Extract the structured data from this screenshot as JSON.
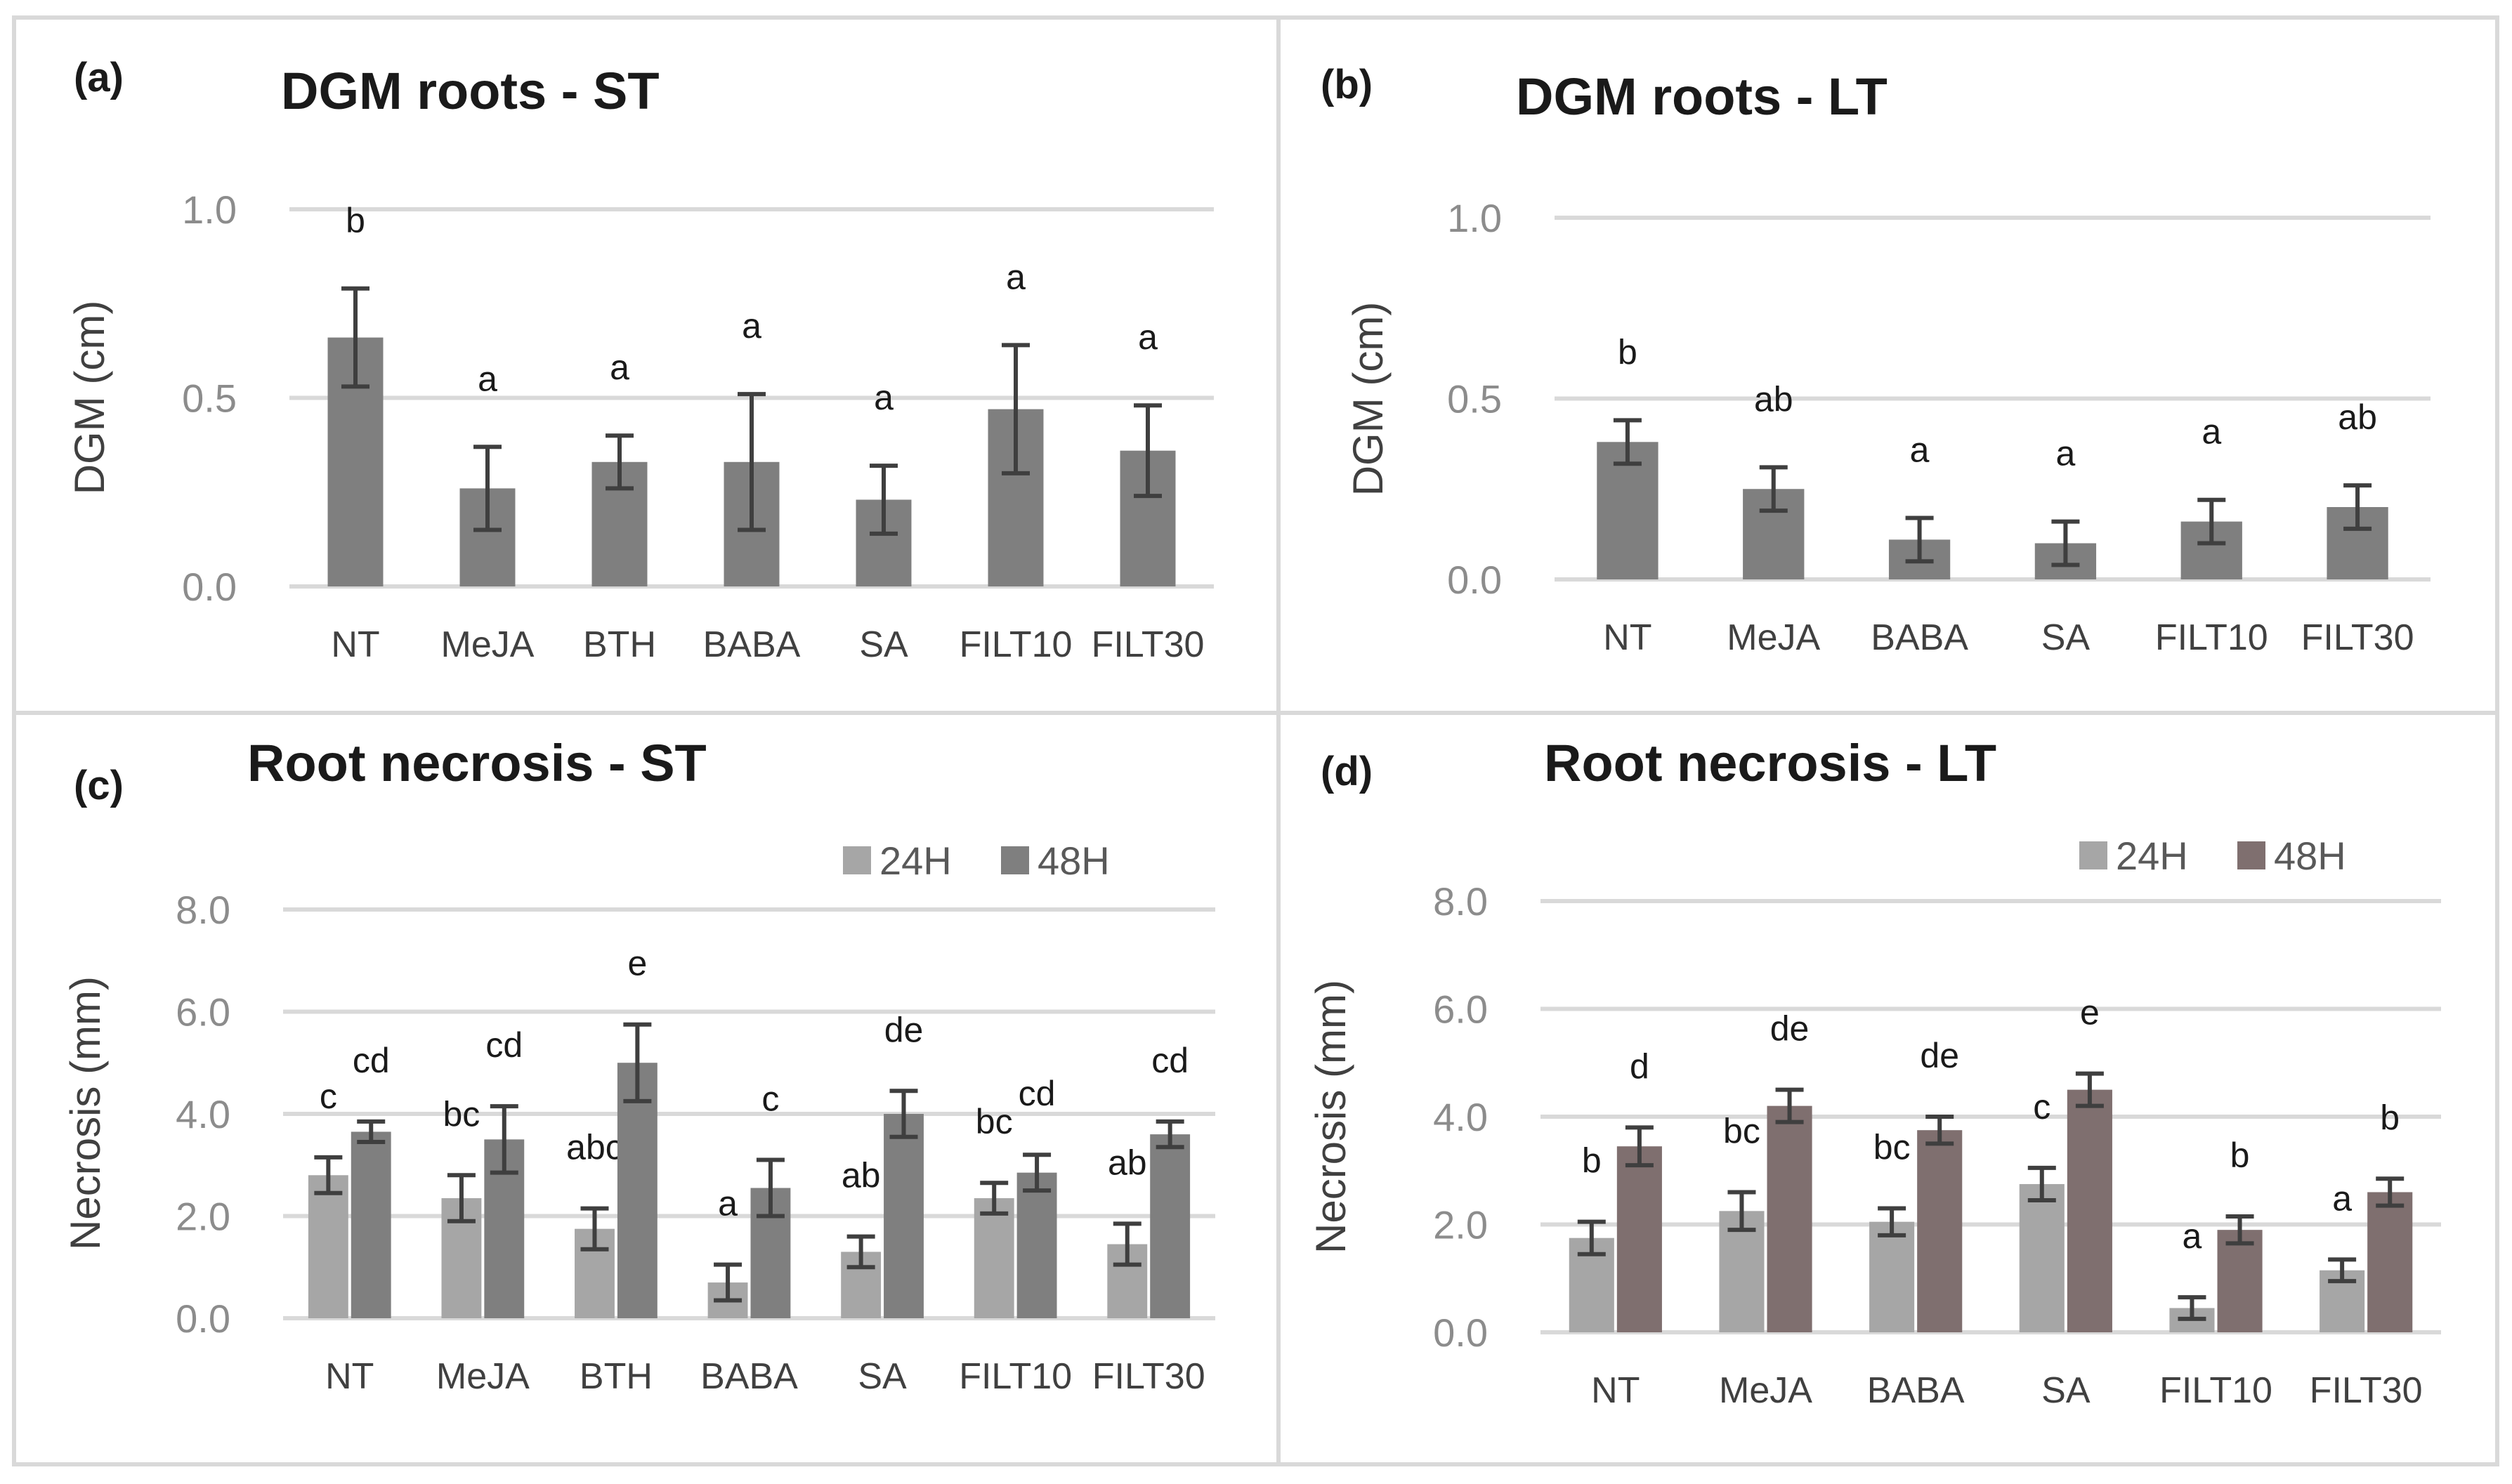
{
  "chart_data": [
    {
      "type": "bar",
      "panel": "(a)",
      "title": "DGM roots - ST",
      "ylabel": "DGM (cm)",
      "ylim": [
        0,
        1.0
      ],
      "yticks": [
        "0.0",
        "0.5",
        "1.0"
      ],
      "categories": [
        "NT",
        "MeJA",
        "BTH",
        "BABA",
        "SA",
        "FILT10",
        "FILT30"
      ],
      "series": [
        {
          "name": "DGM",
          "color": "#7f7f7f",
          "values": [
            0.66,
            0.26,
            0.33,
            0.33,
            0.23,
            0.47,
            0.36
          ],
          "errors": [
            0.13,
            0.11,
            0.07,
            0.18,
            0.09,
            0.17,
            0.12
          ],
          "letters": [
            "b",
            "a",
            "a",
            "a",
            "a",
            "a",
            "a"
          ]
        }
      ]
    },
    {
      "type": "bar",
      "panel": "(b)",
      "title": "DGM roots - LT",
      "ylabel": "DGM (cm)",
      "ylim": [
        0,
        1.0
      ],
      "yticks": [
        "0.0",
        "0.5",
        "1.0"
      ],
      "categories": [
        "NT",
        "MeJA",
        "BABA",
        "SA",
        "FILT10",
        "FILT30"
      ],
      "series": [
        {
          "name": "DGM",
          "color": "#7f7f7f",
          "values": [
            0.38,
            0.25,
            0.11,
            0.1,
            0.16,
            0.2
          ],
          "errors": [
            0.06,
            0.06,
            0.06,
            0.06,
            0.06,
            0.06
          ],
          "letters": [
            "b",
            "ab",
            "a",
            "a",
            "a",
            "ab"
          ]
        }
      ]
    },
    {
      "type": "bar",
      "panel": "(c)",
      "title": "Root necrosis - ST",
      "ylabel": "Necrosis (mm)",
      "ylim": [
        0,
        8.0
      ],
      "yticks": [
        "0.0",
        "2.0",
        "4.0",
        "6.0",
        "8.0"
      ],
      "categories": [
        "NT",
        "MeJA",
        "BTH",
        "BABA",
        "SA",
        "FILT10",
        "FILT30"
      ],
      "legend": [
        "24H",
        "48H"
      ],
      "series": [
        {
          "name": "24H",
          "color": "#a6a6a6",
          "values": [
            2.8,
            2.35,
            1.75,
            0.7,
            1.3,
            2.35,
            1.45
          ],
          "errors": [
            0.35,
            0.45,
            0.4,
            0.35,
            0.3,
            0.3,
            0.4
          ],
          "letters": [
            "c",
            "bc",
            "abc",
            "a",
            "ab",
            "bc",
            "ab"
          ]
        },
        {
          "name": "48H",
          "color": "#7f7f7f",
          "values": [
            3.65,
            3.5,
            5.0,
            2.55,
            4.0,
            2.85,
            3.6
          ],
          "errors": [
            0.2,
            0.65,
            0.75,
            0.55,
            0.45,
            0.35,
            0.25
          ],
          "letters": [
            "cd",
            "cd",
            "e",
            "c",
            "de",
            "cd",
            "cd"
          ]
        }
      ]
    },
    {
      "type": "bar",
      "panel": "(d)",
      "title": "Root necrosis - LT",
      "ylabel": "Necrosis (mm)",
      "ylim": [
        0,
        8.0
      ],
      "yticks": [
        "0.0",
        "2.0",
        "4.0",
        "6.0",
        "8.0"
      ],
      "categories": [
        "NT",
        "MeJA",
        "BABA",
        "SA",
        "FILT10",
        "FILT30"
      ],
      "legend": [
        "24H",
        "48H"
      ],
      "series": [
        {
          "name": "24H",
          "color": "#a6a6a6",
          "values": [
            1.75,
            2.25,
            2.05,
            2.75,
            0.45,
            1.15
          ],
          "errors": [
            0.3,
            0.35,
            0.25,
            0.3,
            0.2,
            0.2
          ],
          "letters": [
            "b",
            "bc",
            "bc",
            "c",
            "a",
            "a"
          ]
        },
        {
          "name": "48H",
          "color": "#7f6f6f",
          "values": [
            3.45,
            4.2,
            3.75,
            4.5,
            1.9,
            2.6
          ],
          "errors": [
            0.35,
            0.3,
            0.25,
            0.3,
            0.25,
            0.25
          ],
          "letters": [
            "d",
            "de",
            "de",
            "e",
            "b",
            "b"
          ]
        }
      ]
    }
  ]
}
